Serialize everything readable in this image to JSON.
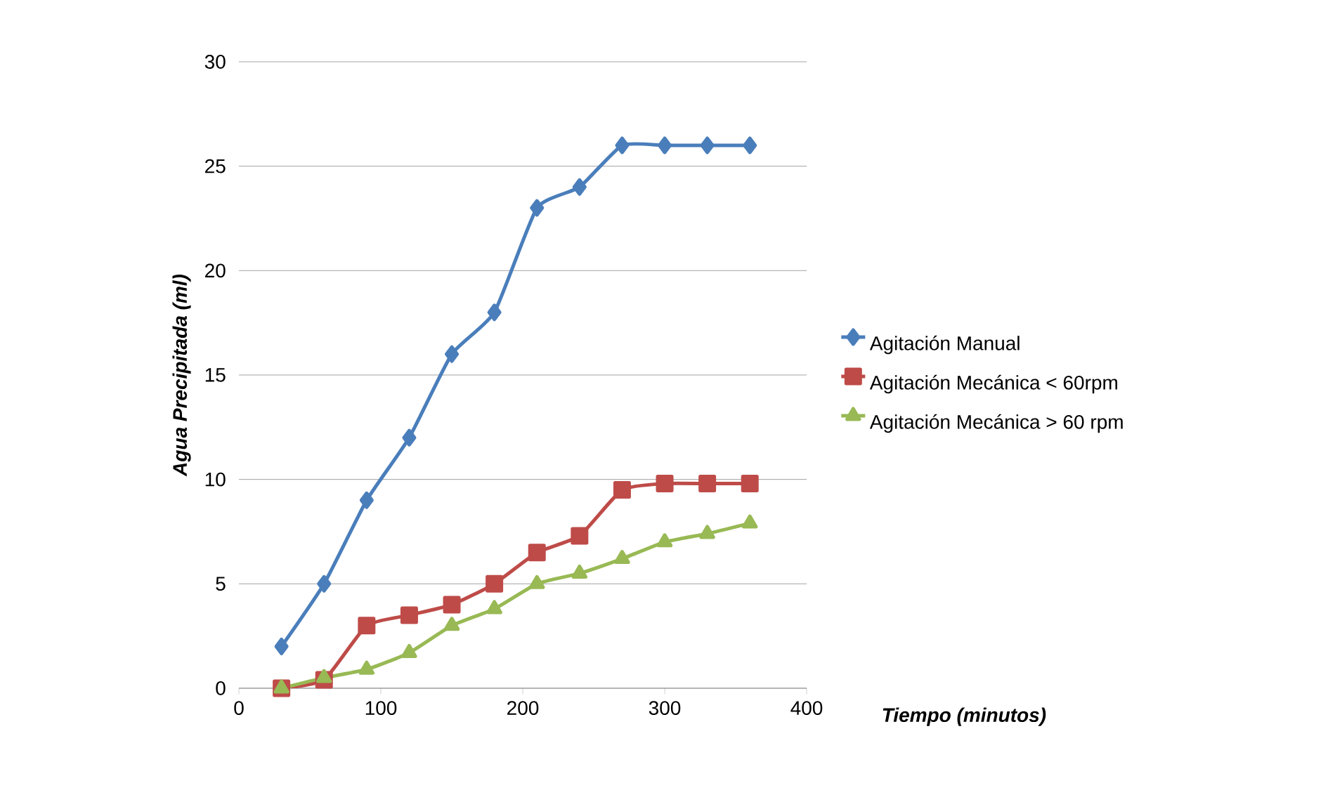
{
  "chart_data": {
    "type": "line",
    "xlabel": "**Tiempo (minutos)**",
    "ylabel": "**Agua Precipitada (ml)**",
    "x": [
      30,
      60,
      90,
      120,
      150,
      180,
      210,
      240,
      270,
      300,
      330,
      360
    ],
    "series": [
      {
        "name": "Agitación Manual",
        "color": "#4a7ebb",
        "marker": "diamond",
        "values": [
          2,
          5,
          9,
          12,
          16,
          18,
          23,
          24,
          26,
          26,
          26,
          26
        ]
      },
      {
        "name": "Agitación Mecánica < 60rpm",
        "color": "#be4b48",
        "marker": "square",
        "values": [
          0,
          0.4,
          3,
          3.5,
          4,
          5,
          6.5,
          7.3,
          9.5,
          9.8,
          9.8,
          9.8
        ]
      },
      {
        "name": "Agitación Mecánica > 60 rpm",
        "color": "#98b954",
        "marker": "triangle",
        "values": [
          0,
          0.5,
          0.9,
          1.7,
          3,
          3.8,
          5,
          5.5,
          6.2,
          7,
          7.4,
          7.9
        ]
      }
    ],
    "xlim": [
      0,
      400
    ],
    "xticks": [
      0,
      100,
      200,
      300,
      400
    ],
    "ylim": [
      0,
      30
    ],
    "yticks": [
      0,
      5,
      10,
      15,
      20,
      25,
      30
    ],
    "grid": "y",
    "legend": "right"
  }
}
